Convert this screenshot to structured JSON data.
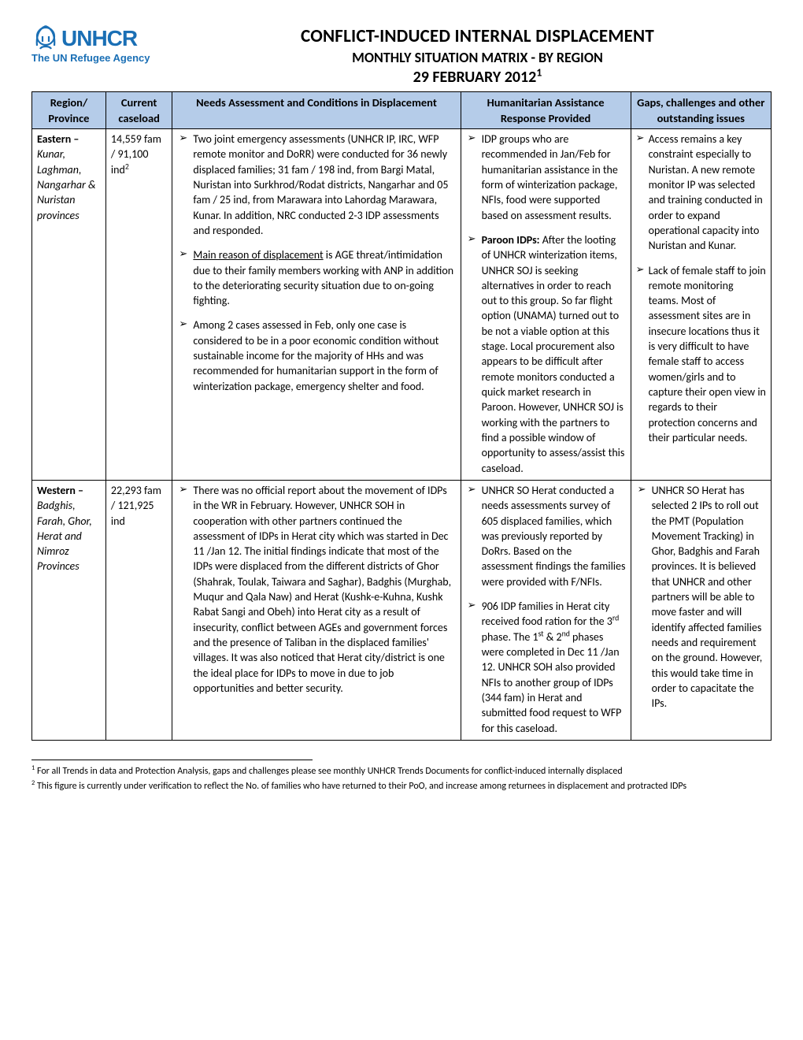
{
  "logo": {
    "main": "UNHCR",
    "sub": "The UN Refugee Agency",
    "accent_color": "#1a6fb5"
  },
  "title": {
    "main": "CONFLICT-INDUCED INTERNAL DISPLACEMENT",
    "sub": "MONTHLY SITUATION MATRIX - BY REGION",
    "date": "29 FEBRUARY 2012",
    "date_sup": "1"
  },
  "columns": {
    "region": "Region/ Province",
    "caseload": "Current caseload",
    "needs": "Needs Assessment and Conditions in Displacement",
    "response": "Humanitarian Assistance Response Provided",
    "gaps": "Gaps, challenges and other outstanding issues"
  },
  "rows": [
    {
      "region_bold": "Eastern –",
      "region_italic": "Kunar, Laghman, Nangarhar & Nuristan provinces",
      "caseload_fam": "14,559 fam",
      "caseload_ind_pre": "/ 91,100 ind",
      "caseload_sup": "2",
      "needs": [
        {
          "text": "Two joint emergency assessments (UNHCR IP, IRC, WFP remote monitor and DoRR) were conducted for 36 newly displaced families; 31 fam / 198 ind, from Bargi Matal, Nuristan into Surkhrod/Rodat districts, Nangarhar and 05 fam / 25 ind, from Marawara into Lahordag Marawara, Kunar. In addition, NRC conducted 2-3 IDP assessments and responded."
        },
        {
          "pre_underline": "Main reason of displacement",
          "post": " is AGE threat/intimidation due to their family members working with ANP in addition to the deteriorating security situation due to on-going fighting."
        },
        {
          "text": "Among 2 cases assessed in Feb, only one case is considered to be in a poor economic condition without sustainable income for the majority of HHs and was recommended for humanitarian support in the form of winterization package, emergency shelter and food."
        }
      ],
      "response": [
        {
          "text": "IDP groups who are recommended in Jan/Feb for humanitarian assistance in the form of winterization package, NFIs, food were supported based on assessment results."
        },
        {
          "bold_lead": "Paroon IDPs:",
          "post": " After the looting of UNHCR winterization items, UNHCR SOJ is seeking alternatives in order to reach out to this group. So far flight option (UNAMA) turned out to be not a viable option at this stage. Local procurement also appears to be difficult after remote monitors conducted a quick market research in Paroon. However, UNHCR SOJ is working with the partners to find a possible window of opportunity to assess/assist this caseload."
        }
      ],
      "gaps": [
        {
          "text": "Access remains a key constraint especially to Nuristan. A new remote monitor IP was selected and training conducted in order to expand operational capacity into Nuristan and Kunar."
        },
        {
          "text": "Lack of female staff to join remote monitoring teams. Most of assessment sites are in insecure locations thus it is very difficult to have female staff to access women/girls and to capture their open view in regards to their protection concerns and their particular needs."
        }
      ]
    },
    {
      "region_bold": "Western –",
      "region_italic": "Badghis, Farah, Ghor, Herat and Nimroz Provinces",
      "caseload_fam": "22,293 fam",
      "caseload_ind_pre": "/ 121,925 ind",
      "caseload_sup": "",
      "needs": [
        {
          "text": "There was no official report about the movement of IDPs in the WR in February. However, UNHCR SOH in cooperation with other partners continued the assessment of IDPs in Herat city which was started in Dec 11 /Jan 12. The initial findings indicate that most of the IDPs were displaced from the different districts of Ghor (Shahrak, Toulak, Taiwara and Saghar), Badghis (Murghab, Muqur and Qala Naw) and Herat (Kushk-e-Kuhna, Kushk Rabat Sangi and Obeh) into Herat city as a result of insecurity, conflict between AGEs and government forces and the presence of Taliban in the displaced families' villages. It was also noticed that Herat city/district is one the ideal place for IDPs to move in due to job opportunities and better security."
        }
      ],
      "response": [
        {
          "text": "UNHCR SO Herat conducted a needs assessments survey of 605 displaced families, which was previously reported by DoRrs. Based on the assessment findings the families were provided with F/NFIs."
        },
        {
          "html": "906 IDP families in Herat city received food ration for the 3<sup>rd</sup> phase. The 1<sup>st</sup> & 2<sup>nd</sup> phases were completed in Dec 11 /Jan 12. UNHCR SOH also provided NFIs to another group of IDPs (344 fam) in Herat and submitted food request to WFP for this caseload."
        }
      ],
      "gaps": [
        {
          "text": "UNHCR SO Herat has selected 2 IPs to roll out the PMT (Population Movement Tracking) in Ghor, Badghis and Farah provinces. It is believed that UNHCR and other partners will be able to move faster and will identify affected families needs and requirement on the ground.  However, this would take time in order to capacitate the IPs."
        }
      ]
    }
  ],
  "footnotes": {
    "fn1_sup": "1",
    "fn1": " For all Trends in data and Protection Analysis, gaps and challenges please see monthly UNHCR Trends Documents for conflict-induced internally displaced",
    "fn2_sup": "2",
    "fn2": " This figure is currently under verification to reflect the No. of families who have returned to their PoO, and increase among returnees in displacement and protracted IDPs"
  },
  "style": {
    "header_bg": "#b5cce9",
    "border_color": "#000000",
    "body_font": "Calibri",
    "base_fontsize_pt": 11
  }
}
